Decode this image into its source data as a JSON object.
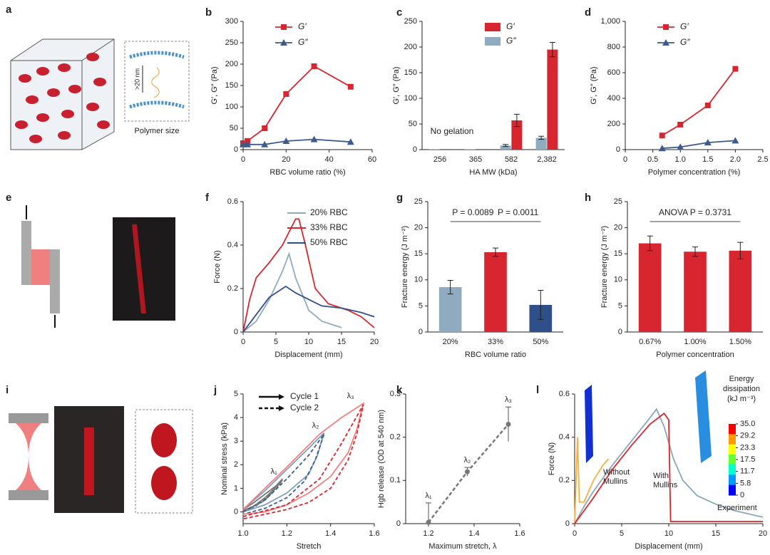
{
  "panels": [
    {
      "label": "a",
      "captions": [
        "Polymer size",
        ">20 nm"
      ]
    },
    {
      "label": "e"
    },
    {
      "label": "i"
    }
  ],
  "chart_data": [
    {
      "type": "line",
      "label": "b",
      "xlabel": "RBC volume ratio (%)",
      "ylabel": "G′, G″ (Pa)",
      "xlim": [
        0,
        60
      ],
      "xticks": [
        0,
        20,
        40,
        60
      ],
      "ylim": [
        0,
        300
      ],
      "yticks": [
        0,
        50,
        100,
        150,
        200,
        250,
        300
      ],
      "series": [
        {
          "name": "G′",
          "color": "#d7262f",
          "marker": "square",
          "x": [
            0,
            2,
            10,
            20,
            33,
            50
          ],
          "values": [
            15,
            20,
            50,
            130,
            195,
            147
          ]
        },
        {
          "name": "G″",
          "color": "#3c5a8c",
          "marker": "triangle",
          "x": [
            0,
            2,
            10,
            20,
            33,
            50
          ],
          "values": [
            12,
            12,
            12,
            20,
            24,
            18
          ]
        }
      ]
    },
    {
      "type": "bar",
      "label": "c",
      "xlabel": "HA MW (kDa)",
      "ylabel": "G′, G″ (Pa)",
      "categories": [
        "256",
        "365",
        "582",
        "2,382"
      ],
      "ylim": [
        0,
        250
      ],
      "yticks": [
        0,
        50,
        100,
        150,
        200,
        250
      ],
      "annotations": [
        "No gelation"
      ],
      "series": [
        {
          "name": "G′",
          "color": "#d7262f",
          "values": [
            1,
            1,
            57,
            195
          ],
          "errors": [
            0,
            0,
            12,
            14
          ]
        },
        {
          "name": "G″",
          "color": "#8eabbf",
          "values": [
            1,
            1,
            8,
            23
          ],
          "errors": [
            0,
            0,
            2,
            3
          ]
        }
      ]
    },
    {
      "type": "line",
      "label": "d",
      "xlabel": "Polymer concentration (%)",
      "ylabel": "G′, G″ (Pa)",
      "xlim": [
        0,
        2.5
      ],
      "xticks": [
        0,
        0.5,
        {
          "value": 1,
          "label": "1.0"
        },
        1.5,
        {
          "value": 2,
          "label": "2.0"
        },
        2.5
      ],
      "ylim": [
        0,
        1000
      ],
      "yticks": [
        0,
        200,
        400,
        600,
        800,
        {
          "value": 1000,
          "label": "1,000"
        }
      ],
      "series": [
        {
          "name": "G′",
          "color": "#d7262f",
          "marker": "square",
          "x": [
            0.67,
            1,
            1.5,
            2
          ],
          "values": [
            110,
            195,
            345,
            630
          ]
        },
        {
          "name": "G″",
          "color": "#3c5a8c",
          "marker": "triangle",
          "x": [
            0.67,
            1,
            1.5,
            2
          ],
          "values": [
            10,
            20,
            55,
            70
          ]
        }
      ]
    },
    {
      "type": "line",
      "label": "f",
      "xlabel": "Displacement (mm)",
      "ylabel": "Force (N)",
      "xlim": [
        0,
        20
      ],
      "xticks": [
        0,
        5,
        10,
        15,
        20
      ],
      "ylim": [
        0,
        0.6
      ],
      "yticks": [
        0,
        0.2,
        0.4,
        0.6
      ],
      "series": [
        {
          "name": "20% RBC",
          "color": "#8eabbf",
          "x": [
            0,
            2,
            4,
            6,
            7,
            8,
            10,
            12,
            14,
            15
          ],
          "values": [
            0,
            0.05,
            0.15,
            0.28,
            0.36,
            0.25,
            0.1,
            0.05,
            0.03,
            0.02
          ]
        },
        {
          "name": "33% RBC",
          "color": "#d7262f",
          "x": [
            0,
            1,
            2,
            4,
            6,
            8,
            8.5,
            9.5,
            11,
            13,
            16,
            18,
            20
          ],
          "values": [
            0,
            0.15,
            0.25,
            0.32,
            0.4,
            0.52,
            0.52,
            0.4,
            0.2,
            0.13,
            0.1,
            0.07,
            0.02
          ]
        },
        {
          "name": "50% RBC",
          "color": "#2f4f8a",
          "x": [
            0,
            2,
            4,
            6,
            6.5,
            8,
            10,
            12,
            15,
            18,
            20
          ],
          "values": [
            0,
            0.08,
            0.16,
            0.2,
            0.21,
            0.18,
            0.15,
            0.12,
            0.11,
            0.09,
            0.07
          ]
        }
      ]
    },
    {
      "type": "bar",
      "label": "g",
      "xlabel": "RBC volume ratio",
      "ylabel": "Fracture energy (J m⁻²)",
      "categories": [
        "20%",
        "33%",
        "50%"
      ],
      "values": [
        8.6,
        15.3,
        5.2
      ],
      "errors": [
        1.3,
        0.8,
        2.8
      ],
      "colors": [
        "#8eabbf",
        "#d7262f",
        "#2f4f8a"
      ],
      "ylim": [
        0,
        25
      ],
      "yticks": [
        0,
        5,
        10,
        15,
        20,
        25
      ],
      "annotations": [
        "P = 0.0089",
        "P = 0.0011"
      ]
    },
    {
      "type": "bar",
      "label": "h",
      "xlabel": "Polymer concentration",
      "ylabel": "Fracture energy (J m⁻²)",
      "categories": [
        "0.67%",
        "1.00%",
        "1.50%"
      ],
      "values": [
        17,
        15.4,
        15.6
      ],
      "errors": [
        1.4,
        0.9,
        1.6
      ],
      "colors": [
        "#d7262f",
        "#d7262f",
        "#d7262f"
      ],
      "ylim": [
        0,
        25
      ],
      "yticks": [
        0,
        5,
        10,
        15,
        20,
        25
      ],
      "annotations": [
        "ANOVA P = 0.3731"
      ]
    },
    {
      "type": "line",
      "label": "j",
      "xlabel": "Stretch",
      "ylabel": "Nominal stress (kPa)",
      "xlim": [
        1,
        1.6
      ],
      "xticks": [
        {
          "value": 1,
          "label": "1.0"
        },
        1.2,
        1.4,
        1.6
      ],
      "ylim": [
        -0.5,
        5
      ],
      "yticks": [
        0,
        1,
        2,
        3,
        4,
        5
      ],
      "legend": [
        "Cycle 1",
        "Cycle 2"
      ],
      "point_labels": [
        "λ₁",
        "λ₂",
        "λ₃"
      ],
      "series": [
        {
          "color": "#777777",
          "dash": false,
          "x": [
            1,
            1.05,
            1.1,
            1.15,
            1.18,
            1.15,
            1.1,
            1.05,
            1
          ],
          "values": [
            0.1,
            0.4,
            0.75,
            1.1,
            1.4,
            1.05,
            0.6,
            0.25,
            0.05
          ]
        },
        {
          "color": "#777777",
          "dash": true,
          "x": [
            1,
            1.05,
            1.1,
            1.15,
            1.18,
            1.14,
            1.1,
            1.05,
            1
          ],
          "values": [
            0,
            0.25,
            0.55,
            0.95,
            1.35,
            0.9,
            0.5,
            0.2,
            0
          ]
        },
        {
          "color": "#7f9fbf",
          "dash": false,
          "x": [
            1,
            1.1,
            1.2,
            1.3,
            1.37,
            1.34,
            1.3,
            1.2,
            1.1,
            1
          ],
          "values": [
            0.1,
            0.9,
            1.8,
            2.7,
            3.35,
            2.4,
            1.6,
            0.8,
            0.3,
            0
          ]
        },
        {
          "color": "#3b5f8f",
          "dash": true,
          "x": [
            1,
            1.1,
            1.2,
            1.3,
            1.37,
            1.33,
            1.28,
            1.2,
            1.1,
            1
          ],
          "values": [
            0,
            0.5,
            1.4,
            2.4,
            3.3,
            2.2,
            1.3,
            0.6,
            0.15,
            -0.1
          ]
        },
        {
          "color": "#f08080",
          "dash": false,
          "x": [
            1,
            1.2,
            1.35,
            1.45,
            1.55,
            1.52,
            1.48,
            1.4,
            1.3,
            1.2,
            1.1,
            1
          ],
          "values": [
            0.1,
            1.9,
            3.3,
            4,
            4.6,
            3.5,
            2.5,
            1.5,
            0.8,
            0.3,
            0,
            -0.1
          ]
        },
        {
          "color": "#d7262f",
          "dash": true,
          "x": [
            1,
            1.2,
            1.35,
            1.45,
            1.55,
            1.52,
            1.48,
            1.4,
            1.3,
            1.2,
            1.1,
            1
          ],
          "values": [
            -0.2,
            0.3,
            1.4,
            2.9,
            4.55,
            3.3,
            2.2,
            1,
            0.4,
            0.1,
            -0.1,
            -0.3
          ]
        }
      ]
    },
    {
      "type": "scatter",
      "label": "k",
      "xlabel": "Maximum stretch, λ",
      "ylabel": "Hgb release (OD at 540 nm)",
      "xlim": [
        1.1,
        1.6
      ],
      "xticks": [
        1.2,
        1.4,
        1.6
      ],
      "ylim": [
        0,
        0.3
      ],
      "yticks": [
        0,
        0.1,
        0.2,
        0.3
      ],
      "x": [
        1.2,
        1.37,
        1.55
      ],
      "values": [
        0.003,
        0.12,
        0.23
      ],
      "errors": [
        0.045,
        0.01,
        0.04
      ],
      "color": "#777777",
      "point_labels": [
        "λ₁",
        "λ₂",
        "λ₃"
      ]
    },
    {
      "type": "line",
      "label": "l",
      "xlabel": "Displacement (mm)",
      "ylabel": "Force (N)",
      "xlim": [
        0,
        20
      ],
      "xticks": [
        0,
        5,
        10,
        15,
        20
      ],
      "ylim": [
        0,
        0.6
      ],
      "yticks": [
        0,
        0.2,
        0.4,
        0.6
      ],
      "series": [
        {
          "name": "Experiment",
          "color": "#8aa7b8",
          "x": [
            0,
            1,
            2,
            4,
            6,
            8,
            8.7,
            9.5,
            10.5,
            11.5,
            13,
            15,
            17,
            19,
            20
          ],
          "values": [
            0,
            0.08,
            0.15,
            0.27,
            0.38,
            0.49,
            0.53,
            0.45,
            0.3,
            0.2,
            0.13,
            0.09,
            0.06,
            0.04,
            0.03
          ]
        },
        {
          "name": "Without Mullins",
          "color": "#f5b041",
          "x": [
            0,
            0.3,
            0.5,
            1,
            2,
            3,
            3.6
          ],
          "values": [
            0,
            0.4,
            0.1,
            0.1,
            0.2,
            0.27,
            0.3
          ]
        },
        {
          "name": "With Mullins",
          "color": "#d7262f",
          "x": [
            0,
            2,
            4,
            6,
            8,
            9.5,
            10,
            10.2,
            11,
            20
          ],
          "values": [
            0,
            0.12,
            0.25,
            0.36,
            0.46,
            0.51,
            0.48,
            0.01,
            0.01,
            0.01
          ]
        }
      ],
      "colorbar": {
        "title": [
          "Energy",
          "dissipation",
          "(kJ m⁻³)"
        ],
        "lim": [
          0,
          35
        ],
        "ticks": [
          {
            "value": 35,
            "label": "35.0"
          },
          29.2,
          23.3,
          17.5,
          11.7,
          5.8,
          0
        ],
        "colors": [
          "#ff0000",
          "#ff9900",
          "#ffff00",
          "#66ff33",
          "#00ffcc",
          "#0099ff",
          "#0000ff"
        ]
      }
    }
  ]
}
